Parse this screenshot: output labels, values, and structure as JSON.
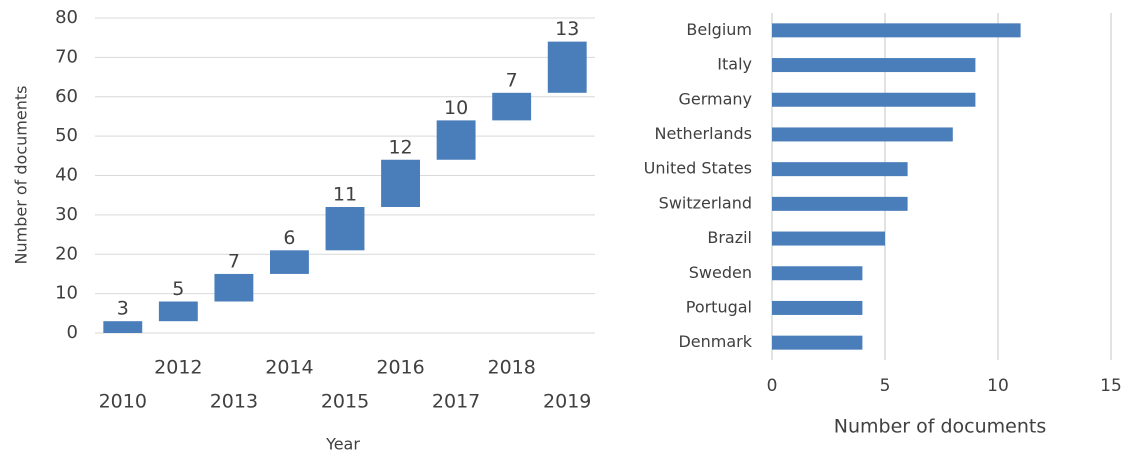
{
  "chart_data": [
    {
      "type": "waterfall",
      "ylabel": "Number of documents",
      "xlabel": "Year",
      "categories": [
        "2010",
        "2012",
        "2013",
        "2014",
        "2015",
        "2016",
        "2017",
        "2018",
        "2019"
      ],
      "values": [
        3,
        5,
        7,
        6,
        11,
        12,
        10,
        7,
        13
      ],
      "color": "#4a7ebb",
      "ylim": [
        0,
        80
      ],
      "yticks": [
        0,
        10,
        20,
        30,
        40,
        50,
        60,
        70,
        80
      ],
      "grid": true
    },
    {
      "type": "hbar",
      "xlabel": "Number of documents",
      "categories": [
        "Belgium",
        "Italy",
        "Germany",
        "Netherlands",
        "United States",
        "Switzerland",
        "Brazil",
        "Sweden",
        "Portugal",
        "Denmark"
      ],
      "values": [
        11,
        9,
        9,
        8,
        6,
        6,
        5,
        4,
        4,
        4
      ],
      "color": "#4a7ebb",
      "xlim": [
        0,
        15
      ],
      "xticks": [
        0,
        5,
        10,
        15
      ],
      "grid": true
    }
  ]
}
